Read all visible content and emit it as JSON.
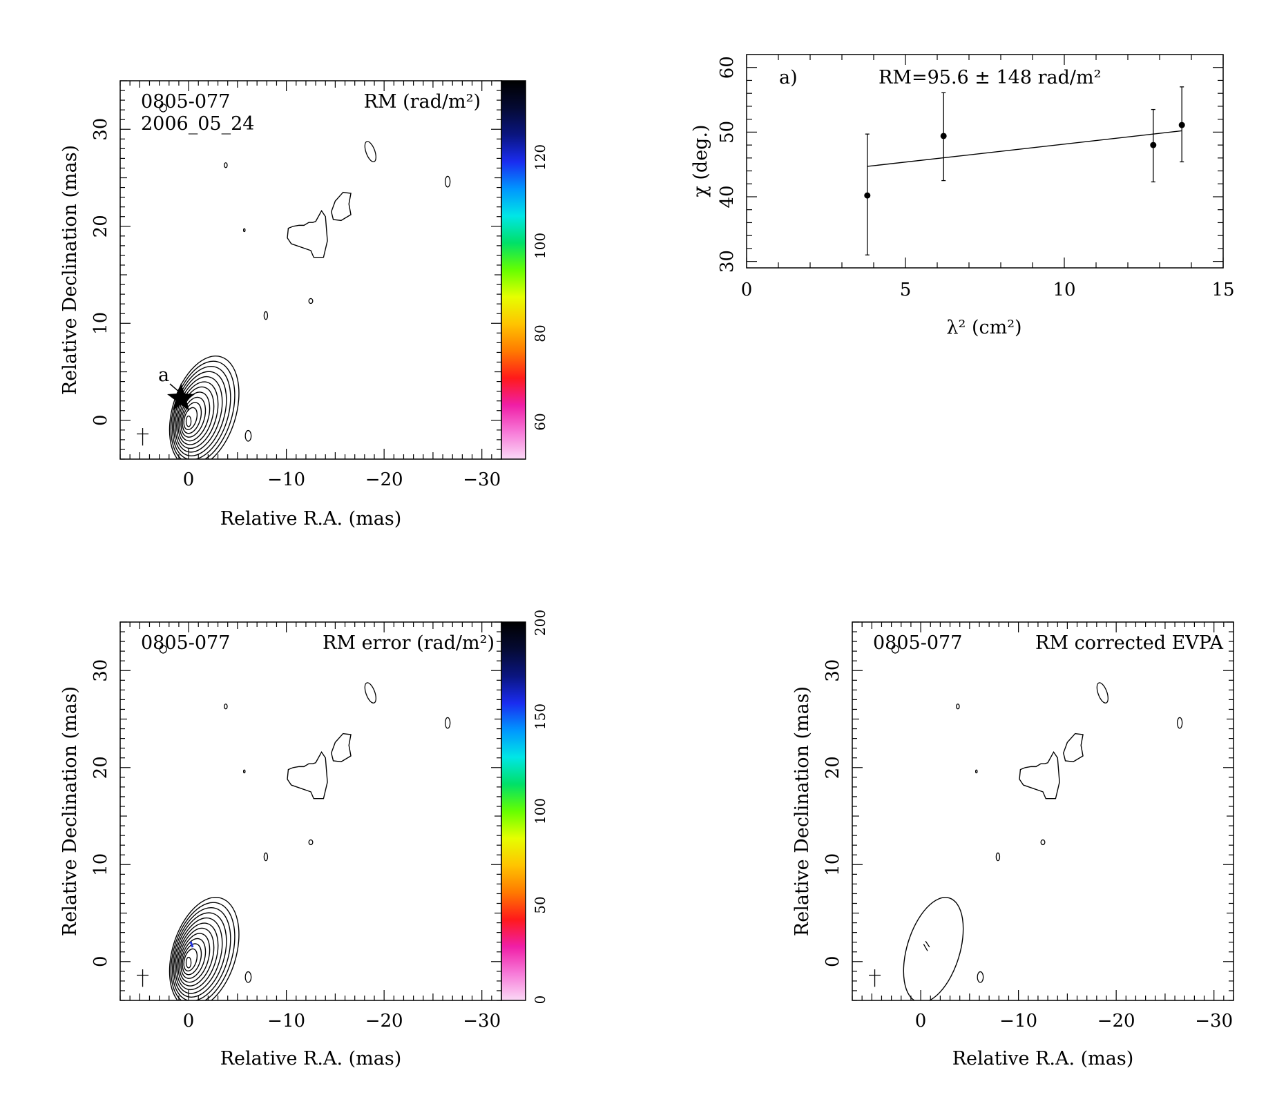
{
  "figure": {
    "panels": [
      {
        "id": "rm-map",
        "source_name": "0805-077",
        "epoch": "2006_05_24",
        "map_label": "RM (rad/m²)",
        "feature_label": "a",
        "xlabel": "Relative R.A. (mas)",
        "ylabel": "Relative Declination (mas)",
        "colorbar_ticks": [
          "60",
          "80",
          "100",
          "120"
        ]
      },
      {
        "id": "rm-fit",
        "panel_label": "a)",
        "fit_label": "RM=95.6 ± 148 rad/m²",
        "xlabel": "λ² (cm²)",
        "ylabel": "χ (deg.)"
      },
      {
        "id": "rm-error-map",
        "source_name": "0805-077",
        "map_label": "RM error (rad/m²)",
        "xlabel": "Relative R.A. (mas)",
        "ylabel": "Relative Declination (mas)",
        "colorbar_ticks": [
          "0",
          "50",
          "100",
          "150",
          "200"
        ]
      },
      {
        "id": "evpa-map",
        "source_name": "0805-077",
        "map_label": "RM corrected EVPA",
        "xlabel": "Relative R.A. (mas)",
        "ylabel": "Relative Declination (mas)"
      }
    ]
  },
  "chart_data": [
    {
      "type": "heatmap",
      "panel": "rm-map",
      "title": "",
      "xlabel": "Relative R.A. (mas)",
      "ylabel": "Relative Declination (mas)",
      "xlim": [
        7,
        -32
      ],
      "ylim": [
        -4,
        35
      ],
      "xticks": [
        0,
        -10,
        -20,
        -30
      ],
      "yticks": [
        0,
        10,
        20,
        30
      ],
      "colorbar": {
        "range": [
          52,
          138
        ],
        "ticks": [
          60,
          80,
          100,
          120
        ],
        "unit": "rad/m²"
      },
      "annotations": [
        "0805-077",
        "2006_05_24",
        "RM (rad/m²)",
        "a"
      ]
    },
    {
      "type": "scatter",
      "panel": "rm-fit",
      "title": "",
      "xlabel": "λ² (cm²)",
      "ylabel": "χ (deg.)",
      "xlim": [
        0,
        15
      ],
      "ylim": [
        29,
        62
      ],
      "xticks": [
        0,
        5,
        10,
        15
      ],
      "yticks": [
        30,
        40,
        50,
        60
      ],
      "points": [
        {
          "x": 3.8,
          "y": 40.2,
          "yerr_low": 31.0,
          "yerr_high": 49.7
        },
        {
          "x": 6.2,
          "y": 49.4,
          "yerr_low": 42.5,
          "yerr_high": 56.1
        },
        {
          "x": 12.8,
          "y": 48.0,
          "yerr_low": 42.3,
          "yerr_high": 53.5
        },
        {
          "x": 13.7,
          "y": 51.1,
          "yerr_low": 45.4,
          "yerr_high": 57.0
        }
      ],
      "fit_line": {
        "x": [
          3.8,
          13.7
        ],
        "y": [
          44.7,
          50.2
        ]
      },
      "annotations": [
        "a)",
        "RM=95.6 ± 148 rad/m²"
      ]
    },
    {
      "type": "heatmap",
      "panel": "rm-error-map",
      "title": "",
      "xlabel": "Relative R.A. (mas)",
      "ylabel": "Relative Declination (mas)",
      "xlim": [
        7,
        -32
      ],
      "ylim": [
        -4,
        35
      ],
      "xticks": [
        0,
        -10,
        -20,
        -30
      ],
      "yticks": [
        0,
        10,
        20,
        30
      ],
      "colorbar": {
        "range": [
          0,
          200
        ],
        "ticks": [
          0,
          50,
          100,
          150,
          200
        ],
        "unit": "rad/m²"
      },
      "annotations": [
        "0805-077",
        "RM error (rad/m²)"
      ]
    },
    {
      "type": "heatmap",
      "panel": "evpa-map",
      "title": "",
      "xlabel": "Relative R.A. (mas)",
      "ylabel": "Relative Declination (mas)",
      "xlim": [
        7,
        -32
      ],
      "ylim": [
        -4,
        35
      ],
      "xticks": [
        0,
        -10,
        -20,
        -30
      ],
      "yticks": [
        0,
        10,
        20,
        30
      ],
      "annotations": [
        "0805-077",
        "RM corrected EVPA"
      ]
    }
  ],
  "colors": {
    "rm_colorbar": [
      "#fbd9f6",
      "#f77ad8",
      "#f01ea6",
      "#ff1a1a",
      "#ff7a00",
      "#ffc400",
      "#e6ff00",
      "#66ff00",
      "#00e068",
      "#00e6e6",
      "#0096ff",
      "#1a2cf0",
      "#0a1580",
      "#050a33",
      "#000000"
    ],
    "rm_error_colorbar": [
      "#fbd9f6",
      "#f77ad8",
      "#f01ea6",
      "#ff1a1a",
      "#ff7a00",
      "#ffc400",
      "#e6ff00",
      "#66ff00",
      "#00e068",
      "#00e6e6",
      "#0096ff",
      "#1a2cf0",
      "#0a1580",
      "#050a33",
      "#000000"
    ],
    "contour": "#000000",
    "rm_error_dot": "#2233dd"
  }
}
